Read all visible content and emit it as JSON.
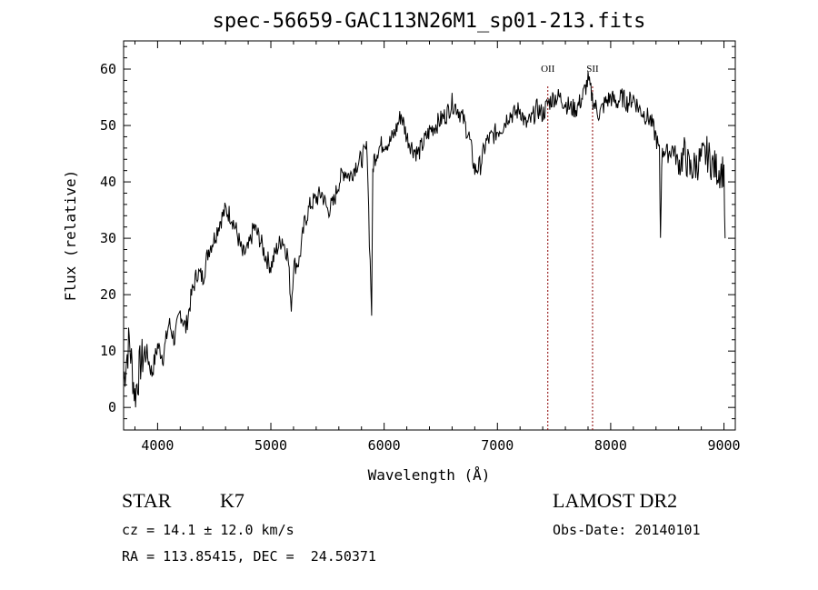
{
  "chart_data": {
    "type": "line",
    "title": "spec-56659-GAC113N26M1_sp01-213.fits",
    "xlabel": "Wavelength (Å)",
    "ylabel": "Flux (relative)",
    "xlim": [
      3700,
      9100
    ],
    "ylim": [
      -4,
      65
    ],
    "xticks": [
      4000,
      5000,
      6000,
      7000,
      8000,
      9000
    ],
    "yticks": [
      0,
      10,
      20,
      30,
      40,
      50,
      60
    ],
    "grid": false,
    "line_color": "#000000",
    "annotation_color": "#8b0000",
    "annotations": [
      {
        "label": "OII",
        "x": 7445
      },
      {
        "label": "SII",
        "x": 7840
      }
    ],
    "series": [
      {
        "x": [
          3700,
          3750,
          3800,
          3850,
          3900,
          3950,
          4000,
          4050,
          4100,
          4150,
          4200,
          4250,
          4300,
          4350,
          4400,
          4450,
          4500,
          4550,
          4600,
          4650,
          4700,
          4750,
          4800,
          4850,
          4900,
          4950,
          5000,
          5050,
          5100,
          5150,
          5180,
          5200,
          5250,
          5300,
          5350,
          5400,
          5450,
          5500,
          5550,
          5600,
          5650,
          5700,
          5750,
          5800,
          5850,
          5870,
          5890,
          5900,
          5910,
          5950,
          6000,
          6050,
          6100,
          6150,
          6200,
          6250,
          6300,
          6350,
          6400,
          6450,
          6500,
          6550,
          6600,
          6650,
          6700,
          6750,
          6800,
          6850,
          6900,
          6950,
          7000,
          7050,
          7100,
          7150,
          7200,
          7250,
          7300,
          7350,
          7400,
          7450,
          7500,
          7550,
          7600,
          7650,
          7700,
          7750,
          7800,
          7850,
          7900,
          7950,
          8000,
          8050,
          8100,
          8150,
          8200,
          8250,
          8300,
          8350,
          8400,
          8430,
          8440,
          8450,
          8470,
          8500,
          8550,
          8600,
          8650,
          8700,
          8750,
          8800,
          8850,
          8900,
          8950,
          9000,
          9010
        ],
        "y": [
          5,
          12,
          2,
          8,
          10,
          6,
          11,
          9,
          15,
          12,
          17,
          14,
          20,
          24,
          23,
          28,
          30,
          33,
          35,
          34,
          31,
          27,
          28,
          32,
          30,
          27,
          25,
          28,
          30,
          27,
          18,
          25,
          26,
          33,
          36,
          37,
          38,
          35,
          36,
          40,
          42,
          41,
          43,
          44,
          46,
          30,
          17,
          42,
          44,
          46,
          47,
          47,
          49,
          52,
          48,
          46,
          45,
          47,
          49,
          50,
          51,
          52,
          54,
          53,
          51,
          48,
          42,
          43,
          47,
          48,
          49,
          50,
          52,
          52,
          53,
          50,
          51,
          53,
          52,
          54,
          55,
          55,
          54,
          53,
          53,
          55,
          58,
          54,
          52,
          54,
          55,
          54,
          55,
          54,
          55,
          53,
          52,
          51,
          48,
          45,
          30,
          44,
          46,
          45,
          46,
          43,
          45,
          42,
          43,
          44,
          45,
          43,
          42,
          42,
          30
        ]
      }
    ]
  },
  "info": {
    "object_type": "STAR",
    "subclass": "K7",
    "survey": "LAMOST DR2",
    "redshift": "cz = 14.1 ± 12.0 km/s",
    "obs_date": "Obs-Date: 20140101",
    "coords": "RA = 113.85415, DEC =  24.50371"
  }
}
